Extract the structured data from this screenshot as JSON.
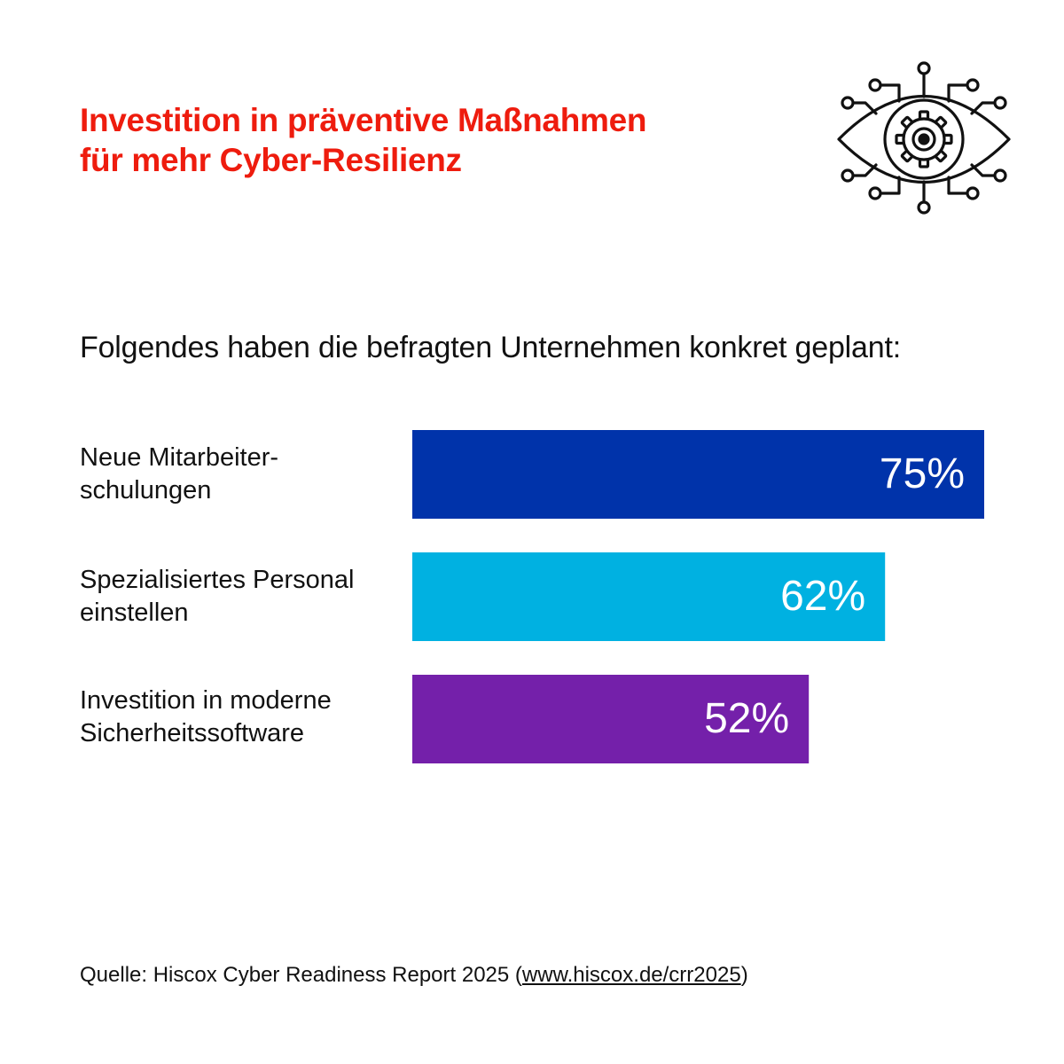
{
  "header": {
    "title_line1": "Investition in präventive Maßnahmen",
    "title_line2": "für mehr Cyber-Resilienz",
    "icon": "cyber-eye-gear-icon"
  },
  "subtitle": "Folgendes haben die befragten Unternehmen konkret geplant:",
  "chart_data": {
    "type": "bar",
    "orientation": "horizontal",
    "categories": [
      [
        "Neue Mitarbeiter-",
        "schulungen"
      ],
      [
        "Spezialisiertes Personal",
        "einstellen"
      ],
      [
        "Investition in moderne",
        "Sicherheitssoftware"
      ]
    ],
    "values": [
      75,
      62,
      52
    ],
    "value_labels": [
      "75%",
      "62%",
      "52%"
    ],
    "colors": [
      "#0033aa",
      "#00b1e1",
      "#7420aa"
    ],
    "unit": "%",
    "xlim": [
      0,
      75
    ],
    "grid": false,
    "legend": "none"
  },
  "footer": {
    "source_prefix": "Quelle: Hiscox Cyber Readiness Report 2025 (",
    "source_link": "www.hiscox.de/crr2025",
    "source_suffix": ")"
  },
  "colors": {
    "title": "#ee1c0e",
    "text": "#111111",
    "bar_label": "#ffffff",
    "background": "#ffffff"
  }
}
